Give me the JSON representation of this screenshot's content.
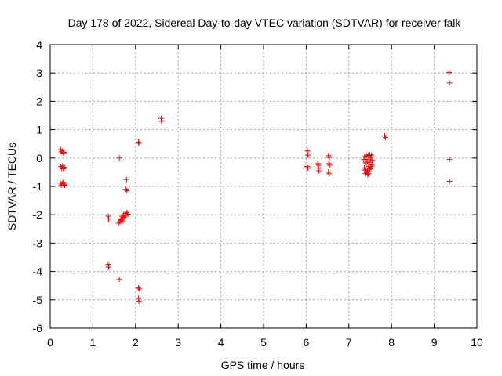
{
  "chart_data": {
    "type": "scatter",
    "title": "Day 178 of 2022, Sidereal Day-to-day VTEC variation (SDTVAR) for receiver falk",
    "xlabel": "GPS time / hours",
    "ylabel": "SDTVAR / TECUs",
    "xlim": [
      0,
      10
    ],
    "ylim": [
      -6,
      4
    ],
    "x_ticks": [
      "0",
      "1",
      "2",
      "3",
      "4",
      "5",
      "6",
      "7",
      "8",
      "9",
      "10"
    ],
    "y_ticks": [
      "-6",
      "-5",
      "-4",
      "-3",
      "-2",
      "-1",
      "0",
      "1",
      "2",
      "3",
      "4"
    ],
    "grid": true,
    "marker": "+",
    "color": "#ff0000",
    "series": [
      {
        "name": "falk",
        "points": [
          [
            0.25,
            0.3
          ],
          [
            0.26,
            0.22
          ],
          [
            0.28,
            0.25
          ],
          [
            0.3,
            0.18
          ],
          [
            0.32,
            0.2
          ],
          [
            0.25,
            -0.3
          ],
          [
            0.27,
            -0.35
          ],
          [
            0.29,
            -0.28
          ],
          [
            0.31,
            -0.38
          ],
          [
            0.33,
            -0.32
          ],
          [
            0.24,
            -0.88
          ],
          [
            0.26,
            -0.95
          ],
          [
            0.28,
            -0.9
          ],
          [
            0.3,
            -0.85
          ],
          [
            0.32,
            -0.92
          ],
          [
            0.34,
            -0.96
          ],
          [
            1.36,
            -2.05
          ],
          [
            1.37,
            -2.15
          ],
          [
            1.36,
            -3.75
          ],
          [
            1.37,
            -3.85
          ],
          [
            1.62,
            0.0
          ],
          [
            1.62,
            -4.28
          ],
          [
            1.6,
            -2.3
          ],
          [
            1.63,
            -2.25
          ],
          [
            1.65,
            -2.2
          ],
          [
            1.67,
            -2.15
          ],
          [
            1.7,
            -2.1
          ],
          [
            1.68,
            -2.05
          ],
          [
            1.72,
            -2.0
          ],
          [
            1.74,
            -2.08
          ],
          [
            1.76,
            -1.95
          ],
          [
            1.78,
            -2.02
          ],
          [
            1.8,
            -1.92
          ],
          [
            1.82,
            -1.98
          ],
          [
            1.66,
            -2.18
          ],
          [
            1.71,
            -2.22
          ],
          [
            1.78,
            -1.1
          ],
          [
            1.8,
            -1.16
          ],
          [
            1.79,
            -0.76
          ],
          [
            2.07,
            0.56
          ],
          [
            2.08,
            0.52
          ],
          [
            2.07,
            -4.58
          ],
          [
            2.09,
            -4.62
          ],
          [
            2.07,
            -4.95
          ],
          [
            2.08,
            -5.05
          ],
          [
            2.6,
            1.4
          ],
          [
            2.61,
            1.3
          ],
          [
            6.03,
            0.25
          ],
          [
            6.04,
            0.1
          ],
          [
            6.02,
            -0.3
          ],
          [
            6.04,
            -0.35
          ],
          [
            6.27,
            -0.2
          ],
          [
            6.29,
            -0.25
          ],
          [
            6.28,
            -0.35
          ],
          [
            6.3,
            -0.45
          ],
          [
            6.52,
            0.08
          ],
          [
            6.54,
            0.02
          ],
          [
            6.53,
            -0.2
          ],
          [
            6.55,
            -0.25
          ],
          [
            6.52,
            -0.5
          ],
          [
            6.54,
            -0.55
          ],
          [
            7.35,
            -0.05
          ],
          [
            7.37,
            0.05
          ],
          [
            7.39,
            -0.15
          ],
          [
            7.41,
            0.08
          ],
          [
            7.43,
            -0.1
          ],
          [
            7.45,
            0.1
          ],
          [
            7.47,
            -0.05
          ],
          [
            7.49,
            0.12
          ],
          [
            7.51,
            0.0
          ],
          [
            7.53,
            0.1
          ],
          [
            7.55,
            -0.08
          ],
          [
            7.36,
            -0.35
          ],
          [
            7.38,
            -0.42
          ],
          [
            7.4,
            -0.48
          ],
          [
            7.42,
            -0.52
          ],
          [
            7.44,
            -0.45
          ],
          [
            7.46,
            -0.55
          ],
          [
            7.48,
            -0.4
          ],
          [
            7.5,
            -0.38
          ],
          [
            7.52,
            -0.3
          ],
          [
            7.54,
            -0.25
          ],
          [
            7.38,
            -0.55
          ],
          [
            7.44,
            -0.58
          ],
          [
            7.4,
            -0.2
          ],
          [
            7.46,
            -0.3
          ],
          [
            7.5,
            -0.15
          ],
          [
            7.84,
            0.78
          ],
          [
            7.86,
            0.72
          ],
          [
            9.35,
            3.02
          ],
          [
            9.36,
            2.65
          ],
          [
            9.36,
            -0.05
          ],
          [
            9.36,
            -0.82
          ]
        ]
      }
    ]
  }
}
